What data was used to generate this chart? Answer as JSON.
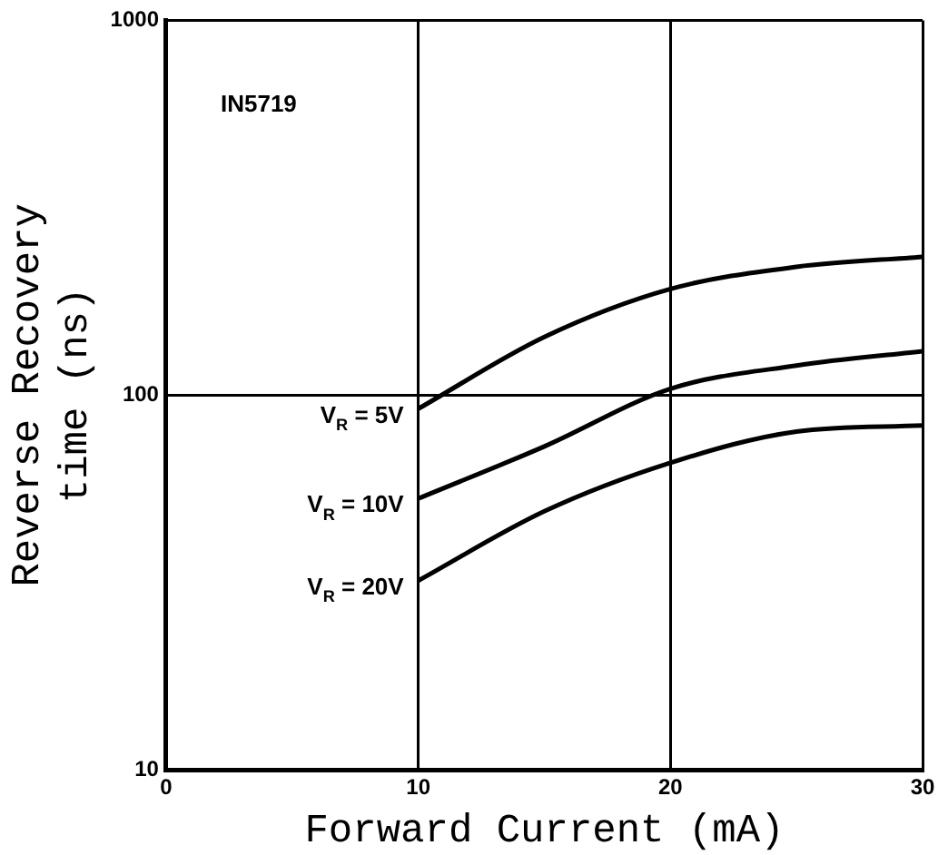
{
  "chart_data": {
    "type": "line",
    "xlabel": "Forward Current (mA)",
    "ylabel": "Reverse Recovery time (ns)",
    "x": [
      10,
      15,
      20,
      25,
      30
    ],
    "series": [
      {
        "name": "V$_{R}$ = 5V",
        "color": "#000000",
        "values": [
          92,
          143,
          192,
          220,
          234
        ]
      },
      {
        "name": "V$_{R}$ = 10V",
        "color": "#000000",
        "values": [
          53,
          73,
          104,
          120,
          131
        ]
      },
      {
        "name": "V$_{R}$ = 20V",
        "color": "#000000",
        "values": [
          32,
          49,
          66,
          80,
          83
        ]
      }
    ],
    "annotations": [
      "IN5719"
    ],
    "xlim": [
      0,
      30
    ],
    "xticks": [
      0,
      10,
      20,
      30
    ],
    "ylim": [
      10,
      1000
    ],
    "yticks": [
      10,
      100,
      1000
    ],
    "log": "y",
    "grid": true,
    "legend": false,
    "marker": "none",
    "line_style": "solid"
  }
}
